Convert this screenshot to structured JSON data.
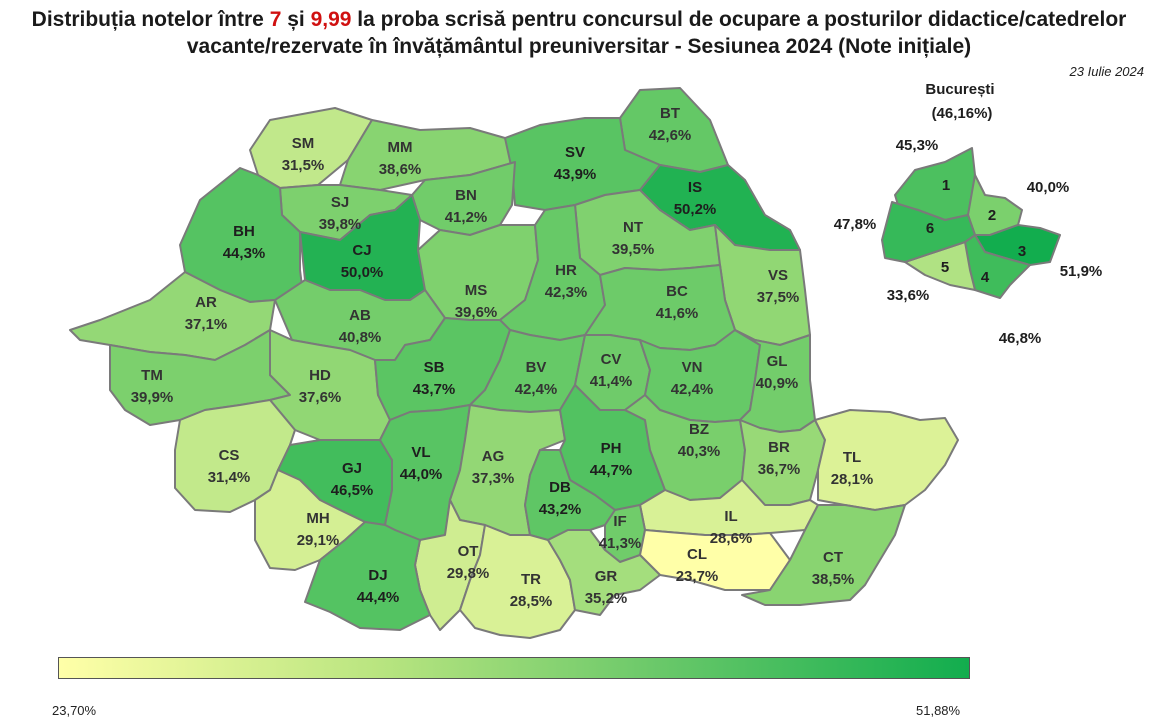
{
  "title": {
    "line1_prefix": "Distribuția notelor între ",
    "low_grade": "7",
    "line1_mid": " și ",
    "high_grade": "9,99",
    "line1_suffix": " la proba scrisă pentru concursul de ocupare a posturilor didactice/catedrelor",
    "line2": "vacante/rezervate în învățământul preuniversitar - Sesiunea 2024 (Note inițiale)"
  },
  "date": "23 Iulie 2024",
  "colors": {
    "scale_min": "#ffffa8",
    "scale_mid": "#8fd673",
    "scale_max": "#12ad4e",
    "border": "#7a7a7a"
  },
  "scale": {
    "min": 23.7,
    "max": 51.88
  },
  "counties": [
    {
      "code": "SM",
      "value": 31.5,
      "value_label": "31,5%"
    },
    {
      "code": "MM",
      "value": 38.6,
      "value_label": "38,6%"
    },
    {
      "code": "BT",
      "value": 42.6,
      "value_label": "42,6%"
    },
    {
      "code": "SV",
      "value": 43.9,
      "value_label": "43,9%"
    },
    {
      "code": "IS",
      "value": 50.2,
      "value_label": "50,2%"
    },
    {
      "code": "SJ",
      "value": 39.8,
      "value_label": "39,8%"
    },
    {
      "code": "BN",
      "value": 41.2,
      "value_label": "41,2%"
    },
    {
      "code": "BH",
      "value": 44.3,
      "value_label": "44,3%"
    },
    {
      "code": "CJ",
      "value": 50.0,
      "value_label": "50,0%"
    },
    {
      "code": "NT",
      "value": 39.5,
      "value_label": "39,5%"
    },
    {
      "code": "MS",
      "value": 39.6,
      "value_label": "39,6%"
    },
    {
      "code": "HR",
      "value": 42.3,
      "value_label": "42,3%"
    },
    {
      "code": "VS",
      "value": 37.5,
      "value_label": "37,5%"
    },
    {
      "code": "AR",
      "value": 37.1,
      "value_label": "37,1%"
    },
    {
      "code": "AB",
      "value": 40.8,
      "value_label": "40,8%"
    },
    {
      "code": "BC",
      "value": 41.6,
      "value_label": "41,6%"
    },
    {
      "code": "TM",
      "value": 39.9,
      "value_label": "39,9%"
    },
    {
      "code": "HD",
      "value": 37.6,
      "value_label": "37,6%"
    },
    {
      "code": "SB",
      "value": 43.7,
      "value_label": "43,7%"
    },
    {
      "code": "BV",
      "value": 42.4,
      "value_label": "42,4%"
    },
    {
      "code": "CV",
      "value": 41.4,
      "value_label": "41,4%"
    },
    {
      "code": "VN",
      "value": 42.4,
      "value_label": "42,4%"
    },
    {
      "code": "GL",
      "value": 40.9,
      "value_label": "40,9%"
    },
    {
      "code": "CS",
      "value": 31.4,
      "value_label": "31,4%"
    },
    {
      "code": "GJ",
      "value": 46.5,
      "value_label": "46,5%"
    },
    {
      "code": "VL",
      "value": 44.0,
      "value_label": "44,0%"
    },
    {
      "code": "AG",
      "value": 37.3,
      "value_label": "37,3%"
    },
    {
      "code": "PH",
      "value": 44.7,
      "value_label": "44,7%"
    },
    {
      "code": "BZ",
      "value": 40.3,
      "value_label": "40,3%"
    },
    {
      "code": "BR",
      "value": 36.7,
      "value_label": "36,7%"
    },
    {
      "code": "TL",
      "value": 28.1,
      "value_label": "28,1%"
    },
    {
      "code": "DB",
      "value": 43.2,
      "value_label": "43,2%"
    },
    {
      "code": "MH",
      "value": 29.1,
      "value_label": "29,1%"
    },
    {
      "code": "IL",
      "value": 28.6,
      "value_label": "28,6%"
    },
    {
      "code": "IF",
      "value": 41.3,
      "value_label": "41,3%"
    },
    {
      "code": "CL",
      "value": 23.7,
      "value_label": "23,7%"
    },
    {
      "code": "OT",
      "value": 29.8,
      "value_label": "29,8%"
    },
    {
      "code": "DJ",
      "value": 44.4,
      "value_label": "44,4%"
    },
    {
      "code": "TR",
      "value": 28.5,
      "value_label": "28,5%"
    },
    {
      "code": "GR",
      "value": 35.2,
      "value_label": "35,2%"
    },
    {
      "code": "CT",
      "value": 38.5,
      "value_label": "38,5%"
    }
  ],
  "bucharest": {
    "name": "București",
    "total_label": "(46,16%)",
    "sectors": [
      {
        "number": "1",
        "value": 45.3,
        "value_label": "45,3%"
      },
      {
        "number": "2",
        "value": 40.0,
        "value_label": "40,0%"
      },
      {
        "number": "3",
        "value": 51.9,
        "value_label": "51,9%"
      },
      {
        "number": "4",
        "value": 46.8,
        "value_label": "46,8%"
      },
      {
        "number": "5",
        "value": 33.6,
        "value_label": "33,6%"
      },
      {
        "number": "6",
        "value": 47.8,
        "value_label": "47,8%"
      }
    ]
  },
  "legend": {
    "min_label": "23,70%",
    "max_label": "51,88%"
  }
}
